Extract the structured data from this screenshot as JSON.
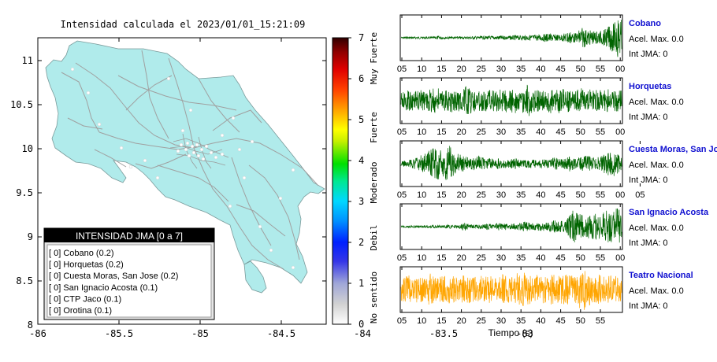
{
  "map": {
    "title": "Intensidad calculada el 2023/01/01_15:21:09",
    "x_ticks": [
      "-86",
      "-85.5",
      "-85",
      "-84.5",
      "-84",
      "-83.5",
      "-83"
    ],
    "y_ticks": [
      "11",
      "10.5",
      "10",
      "9.5",
      "9",
      "8.5",
      "8"
    ],
    "land_color": "#b0ebeb",
    "road_color": "#a0a0a0",
    "legend": {
      "title": "INTENSIDAD JMA [0 a 7]",
      "items": [
        "[ 0]  Cobano (0.2)",
        "[ 0]  Horquetas (0.2)",
        "[ 0]  Cuesta Moras, San Jose (0.2)",
        "[ 0]  San Ignacio Acosta (0.1)",
        "[ 0]  CTP Jaco (0.1)",
        "[ 0]  Orotina (0.1)"
      ]
    }
  },
  "colorbar": {
    "ticks": [
      "7",
      "6",
      "5",
      "4",
      "3",
      "2",
      "1",
      "0"
    ],
    "labels": [
      "Muy Fuerte",
      "Fuerte",
      "Moderado",
      "Debil",
      "No sentido"
    ]
  },
  "chart_data": [
    {
      "type": "line",
      "name": "Cobano",
      "color": "#006400",
      "x_ticks": [
        "05",
        "10",
        "15",
        "20",
        "25",
        "30",
        "35",
        "40",
        "45",
        "50",
        "55",
        "00"
      ],
      "envelope": [
        0.04,
        0.04,
        0.05,
        0.05,
        0.05,
        0.06,
        0.05,
        0.05,
        0.05,
        0.06,
        0.1,
        0.06,
        0.05,
        0.05,
        0.05,
        0.06,
        0.06,
        0.05,
        0.06,
        0.07,
        0.07,
        0.08,
        0.08,
        0.08,
        0.09,
        0.09,
        0.1,
        0.1,
        0.1,
        0.1,
        0.11,
        0.12,
        0.12,
        0.12,
        0.13,
        0.14,
        0.14,
        0.16,
        0.16,
        0.22,
        0.2,
        0.16,
        0.15,
        0.16,
        0.24,
        0.34,
        0.25,
        0.2,
        0.5,
        0.46,
        0.36,
        0.34,
        0.3,
        0.34,
        0.35,
        0.45,
        0.62,
        0.7,
        1.0,
        0.85
      ],
      "info": [
        "Acel. Max. 0.0",
        "Int JMA: 0"
      ]
    },
    {
      "type": "line",
      "name": "Horquetas",
      "color": "#006400",
      "x_ticks": [
        "05",
        "10",
        "15",
        "20",
        "25",
        "30",
        "35",
        "40",
        "45",
        "50",
        "55",
        "00"
      ],
      "envelope": [
        0.42,
        0.46,
        0.5,
        0.46,
        0.48,
        0.52,
        0.5,
        0.46,
        0.55,
        0.62,
        0.58,
        0.5,
        0.48,
        0.52,
        0.55,
        0.5,
        0.55,
        0.72,
        0.65,
        0.58,
        0.52,
        0.5,
        0.48,
        0.55,
        0.52,
        0.48,
        0.55,
        0.5,
        0.55,
        0.5,
        0.6,
        0.58,
        0.5,
        0.62,
        0.85,
        0.58,
        0.5,
        0.52,
        0.48,
        0.55,
        0.6,
        0.52,
        0.62,
        0.55,
        0.6,
        0.52,
        0.5,
        0.55,
        0.58,
        0.6,
        0.55,
        0.52,
        0.55,
        0.52,
        0.5,
        0.55,
        0.52,
        0.55,
        0.5,
        0.48
      ],
      "info": [
        "Acel. Max. 0.0",
        "Int JMA: 0"
      ]
    },
    {
      "type": "line",
      "name": "Cuesta Moras, San Jose",
      "color": "#006400",
      "x_ticks": [
        "05",
        "10",
        "15",
        "20",
        "25",
        "30",
        "35",
        "40",
        "45",
        "50",
        "55",
        "00",
        "05"
      ],
      "envelope": [
        0.12,
        0.14,
        0.18,
        0.22,
        0.3,
        0.38,
        0.45,
        0.55,
        0.7,
        0.82,
        0.75,
        0.55,
        0.8,
        0.95,
        0.6,
        0.48,
        0.42,
        0.36,
        0.3,
        0.28,
        0.32,
        0.36,
        0.3,
        0.26,
        0.24,
        0.22,
        0.26,
        0.22,
        0.2,
        0.22,
        0.3,
        0.24,
        0.2,
        0.18,
        0.2,
        0.22,
        0.18,
        0.2,
        0.22,
        0.2,
        0.24,
        0.32,
        0.26,
        0.22,
        0.28,
        0.38,
        0.3,
        0.26,
        0.32,
        0.36,
        0.4,
        0.34,
        0.3,
        0.32,
        0.4,
        0.52,
        0.6,
        0.66,
        0.45,
        0.3
      ],
      "info": [
        "Acel. Max. 0.0",
        "Int JMA: 0"
      ]
    },
    {
      "type": "line",
      "name": "San Ignacio Acosta",
      "color": "#006400",
      "x_ticks": [
        "05",
        "10",
        "15",
        "20",
        "25",
        "30",
        "35",
        "40",
        "45",
        "50",
        "55",
        "00"
      ],
      "envelope": [
        0.04,
        0.04,
        0.05,
        0.05,
        0.05,
        0.06,
        0.06,
        0.06,
        0.07,
        0.08,
        0.07,
        0.06,
        0.08,
        0.1,
        0.08,
        0.07,
        0.12,
        0.2,
        0.14,
        0.1,
        0.09,
        0.1,
        0.12,
        0.16,
        0.12,
        0.1,
        0.18,
        0.14,
        0.16,
        0.12,
        0.14,
        0.16,
        0.18,
        0.24,
        0.2,
        0.16,
        0.18,
        0.22,
        0.2,
        0.18,
        0.24,
        0.32,
        0.28,
        0.3,
        0.26,
        0.55,
        0.78,
        0.7,
        0.6,
        0.48,
        0.55,
        0.68,
        0.62,
        0.58,
        0.75,
        0.8,
        0.72,
        0.9,
        0.85,
        0.7
      ],
      "info": [
        "Acel. Max. 0.0",
        "Int JMA: 0"
      ]
    },
    {
      "type": "line",
      "name": "Teatro Nacional",
      "color": "#ffa500",
      "x_ticks": [
        "05",
        "10",
        "15",
        "20",
        "25",
        "30",
        "35",
        "40",
        "45",
        "50",
        "55"
      ],
      "xlabel": "Tiempo (s)",
      "envelope": [
        0.55,
        0.6,
        0.7,
        0.62,
        0.66,
        0.58,
        0.62,
        0.72,
        0.78,
        0.66,
        0.6,
        0.62,
        0.68,
        0.72,
        0.65,
        0.6,
        0.62,
        0.68,
        0.66,
        0.62,
        0.66,
        0.64,
        0.68,
        0.62,
        0.66,
        0.6,
        0.64,
        0.72,
        0.66,
        0.62,
        0.7,
        0.78,
        0.72,
        0.85,
        0.7,
        0.66,
        0.7,
        0.72,
        0.68,
        0.66,
        0.74,
        0.7,
        0.68,
        0.66,
        0.72,
        0.68,
        0.66,
        0.64,
        0.95,
        1.0,
        0.8,
        0.72,
        0.7,
        0.74,
        0.66,
        0.64,
        0.68,
        0.66,
        0.62,
        0.6
      ],
      "info": [
        "Acel. Max. 0.0",
        "Int JMA: 0"
      ]
    }
  ]
}
